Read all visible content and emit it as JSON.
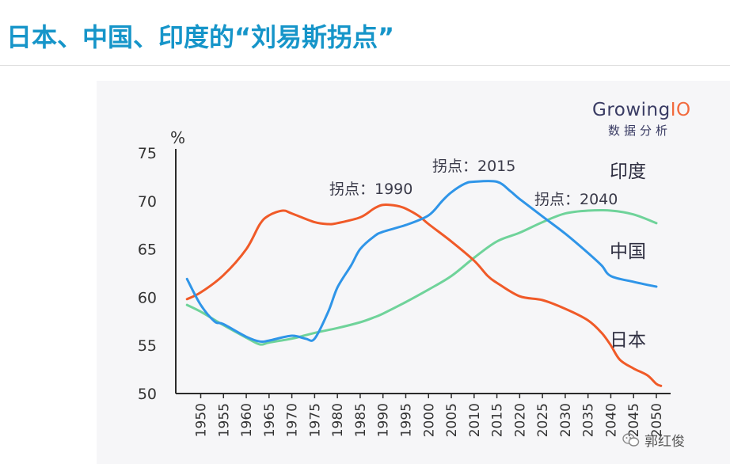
{
  "title": "日本、中国、印度的“刘易斯拐点”",
  "brand": {
    "name_main": "Growing",
    "name_accent": "IO",
    "subtitle": "数据分析"
  },
  "watermark": {
    "text": "郭红俊"
  },
  "colors": {
    "japan": "#f05a28",
    "china": "#2f95e8",
    "india": "#6fd39a",
    "axis": "#2b2b2b",
    "title": "#1695c9"
  },
  "chart_data": {
    "type": "line",
    "title": "",
    "ylabel": "%",
    "xlabel": "",
    "ylim": [
      50,
      75
    ],
    "xlim": [
      1945,
      1952
    ],
    "yticks": [
      50,
      55,
      60,
      65,
      70,
      75
    ],
    "xticks": [
      "1950",
      "1955",
      "1960",
      "1965",
      "1970",
      "1975",
      "1980",
      "1985",
      "1990",
      "1995",
      "2000",
      "2005",
      "2010",
      "2015",
      "2020",
      "2025",
      "2030",
      "2035",
      "2040",
      "2045",
      "2050"
    ],
    "series": [
      {
        "name": "日本",
        "color": "#f05a28",
        "points": [
          [
            1947,
            59.8
          ],
          [
            1950,
            60.5
          ],
          [
            1955,
            62.3
          ],
          [
            1960,
            65.0
          ],
          [
            1963,
            67.6
          ],
          [
            1965,
            68.5
          ],
          [
            1968,
            69.0
          ],
          [
            1970,
            68.7
          ],
          [
            1975,
            67.8
          ],
          [
            1978,
            67.6
          ],
          [
            1980,
            67.7
          ],
          [
            1985,
            68.3
          ],
          [
            1988,
            69.2
          ],
          [
            1990,
            69.6
          ],
          [
            1993,
            69.5
          ],
          [
            1995,
            69.2
          ],
          [
            1998,
            68.4
          ],
          [
            2000,
            67.6
          ],
          [
            2005,
            65.8
          ],
          [
            2010,
            63.8
          ],
          [
            2013,
            62.2
          ],
          [
            2015,
            61.5
          ],
          [
            2020,
            60.1
          ],
          [
            2025,
            59.7
          ],
          [
            2030,
            58.8
          ],
          [
            2035,
            57.6
          ],
          [
            2038,
            56.3
          ],
          [
            2040,
            55.0
          ],
          [
            2042,
            53.5
          ],
          [
            2045,
            52.6
          ],
          [
            2048,
            51.9
          ],
          [
            2050,
            51.0
          ],
          [
            2051,
            50.8
          ]
        ]
      },
      {
        "name": "中国",
        "color": "#2f95e8",
        "points": [
          [
            1947,
            61.9
          ],
          [
            1950,
            59.2
          ],
          [
            1953,
            57.5
          ],
          [
            1955,
            57.2
          ],
          [
            1960,
            55.9
          ],
          [
            1963,
            55.4
          ],
          [
            1965,
            55.5
          ],
          [
            1970,
            56.0
          ],
          [
            1973,
            55.7
          ],
          [
            1975,
            55.7
          ],
          [
            1978,
            58.5
          ],
          [
            1980,
            61.0
          ],
          [
            1983,
            63.3
          ],
          [
            1985,
            65.0
          ],
          [
            1988,
            66.3
          ],
          [
            1990,
            66.8
          ],
          [
            1995,
            67.5
          ],
          [
            2000,
            68.5
          ],
          [
            2003,
            70.0
          ],
          [
            2005,
            70.9
          ],
          [
            2008,
            71.8
          ],
          [
            2010,
            72.0
          ],
          [
            2015,
            72.0
          ],
          [
            2018,
            71.0
          ],
          [
            2020,
            70.2
          ],
          [
            2025,
            68.4
          ],
          [
            2030,
            66.6
          ],
          [
            2035,
            64.6
          ],
          [
            2038,
            63.3
          ],
          [
            2040,
            62.2
          ],
          [
            2045,
            61.6
          ],
          [
            2050,
            61.1
          ]
        ]
      },
      {
        "name": "印度",
        "color": "#6fd39a",
        "points": [
          [
            1947,
            59.2
          ],
          [
            1950,
            58.5
          ],
          [
            1955,
            57.1
          ],
          [
            1960,
            55.8
          ],
          [
            1963,
            55.1
          ],
          [
            1965,
            55.3
          ],
          [
            1970,
            55.7
          ],
          [
            1975,
            56.3
          ],
          [
            1980,
            56.8
          ],
          [
            1985,
            57.4
          ],
          [
            1988,
            57.9
          ],
          [
            1990,
            58.3
          ],
          [
            1995,
            59.5
          ],
          [
            2000,
            60.8
          ],
          [
            2005,
            62.2
          ],
          [
            2010,
            64.1
          ],
          [
            2015,
            65.8
          ],
          [
            2020,
            66.7
          ],
          [
            2025,
            67.8
          ],
          [
            2030,
            68.7
          ],
          [
            2035,
            69.0
          ],
          [
            2040,
            69.0
          ],
          [
            2045,
            68.6
          ],
          [
            2050,
            67.7
          ]
        ]
      }
    ],
    "annotations": [
      {
        "text": "拐点：1990",
        "x": 1990,
        "y": 70.6
      },
      {
        "text": "拐点：2015",
        "x": 2015,
        "y": 73.0
      },
      {
        "text": "拐点：2040",
        "x": 2040,
        "y": 70.0
      }
    ],
    "legend": [
      {
        "text": "印度",
        "y": 73.0
      },
      {
        "text": "中国",
        "y": 65.0
      },
      {
        "text": "日本",
        "y": 55.5
      }
    ]
  }
}
